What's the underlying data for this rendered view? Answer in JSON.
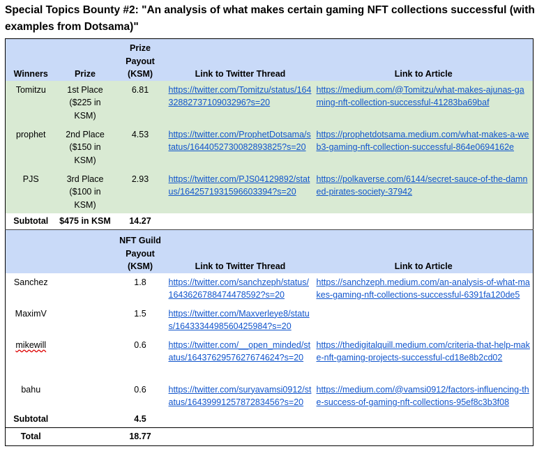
{
  "title": "Special Topics Bounty #2: \"An analysis of what makes certain gaming NFT collections successful (with examples from Dotsama)\"",
  "prize_section": {
    "headers": {
      "winners": "Winners",
      "prize": "Prize",
      "payout": "Prize Payout (KSM)",
      "twitter": "Link to Twitter Thread",
      "article": "Link to Article"
    },
    "rows": [
      {
        "name": "Tomitzu",
        "prize": "1st Place ($225 in KSM)",
        "payout": "6.81",
        "twitter": "https://twitter.com/Tomitzu/status/1643288273710903296?s=20",
        "article": "https://medium.com/@Tomitzu/what-makes-ajunas-gaming-nft-collection-successful-41283ba69baf"
      },
      {
        "name": "prophet",
        "prize": "2nd Place ($150 in KSM)",
        "payout": "4.53",
        "twitter": "https://twitter.com/ProphetDotsama/status/1644052730082893825?s=20",
        "article": "https://prophetdotsama.medium.com/what-makes-a-web3-gaming-nft-collection-successful-864e0694162e"
      },
      {
        "name": "PJS",
        "prize": "3rd Place ($100 in KSM)",
        "payout": "2.93",
        "twitter": "https://twitter.com/PJS04129892/status/1642571931596603394?s=20",
        "article": "https://polkaverse.com/6144/secret-sauce-of-the-damned-pirates-society-37942"
      }
    ],
    "subtotal_label": "Subtotal",
    "subtotal_prize": "$475 in KSM",
    "subtotal_payout": "14.27"
  },
  "guild_section": {
    "headers": {
      "payout": "NFT Guild Payout (KSM)",
      "twitter": "Link to Twitter Thread",
      "article": "Link to Article"
    },
    "rows": [
      {
        "name": "Sanchez",
        "payout": "1.8",
        "twitter": "https://twitter.com/sanchzeph/status/1643626788474478592?s=20",
        "article": "https://sanchzeph.medium.com/an-analysis-of-what-makes-gaming-nft-collections-successful-6391fa120de5"
      },
      {
        "name": "MaximV",
        "payout": "1.5",
        "twitter": "https://twitter.com/Maxverleye8/status/1643334498560425984?s=20",
        "article": ""
      },
      {
        "name": "mikewill",
        "payout": "0.6",
        "twitter": "https://twitter.com/__open_minded/status/1643762957627674624?s=20",
        "article": "https://thedigitalquill.medium.com/criteria-that-help-make-nft-gaming-projects-successful-cd18e8b2cd02"
      },
      {
        "name": "bahu",
        "payout": "0.6",
        "twitter": "https://twitter.com/suryavamsi0912/status/1643999125787283456?s=20",
        "article": "https://medium.com/@vamsi0912/factors-influencing-the-success-of-gaming-nft-collections-95ef8c3b3f08"
      }
    ],
    "subtotal_label": "Subtotal",
    "subtotal_payout": "4.5"
  },
  "total": {
    "label": "Total",
    "value": "18.77"
  }
}
